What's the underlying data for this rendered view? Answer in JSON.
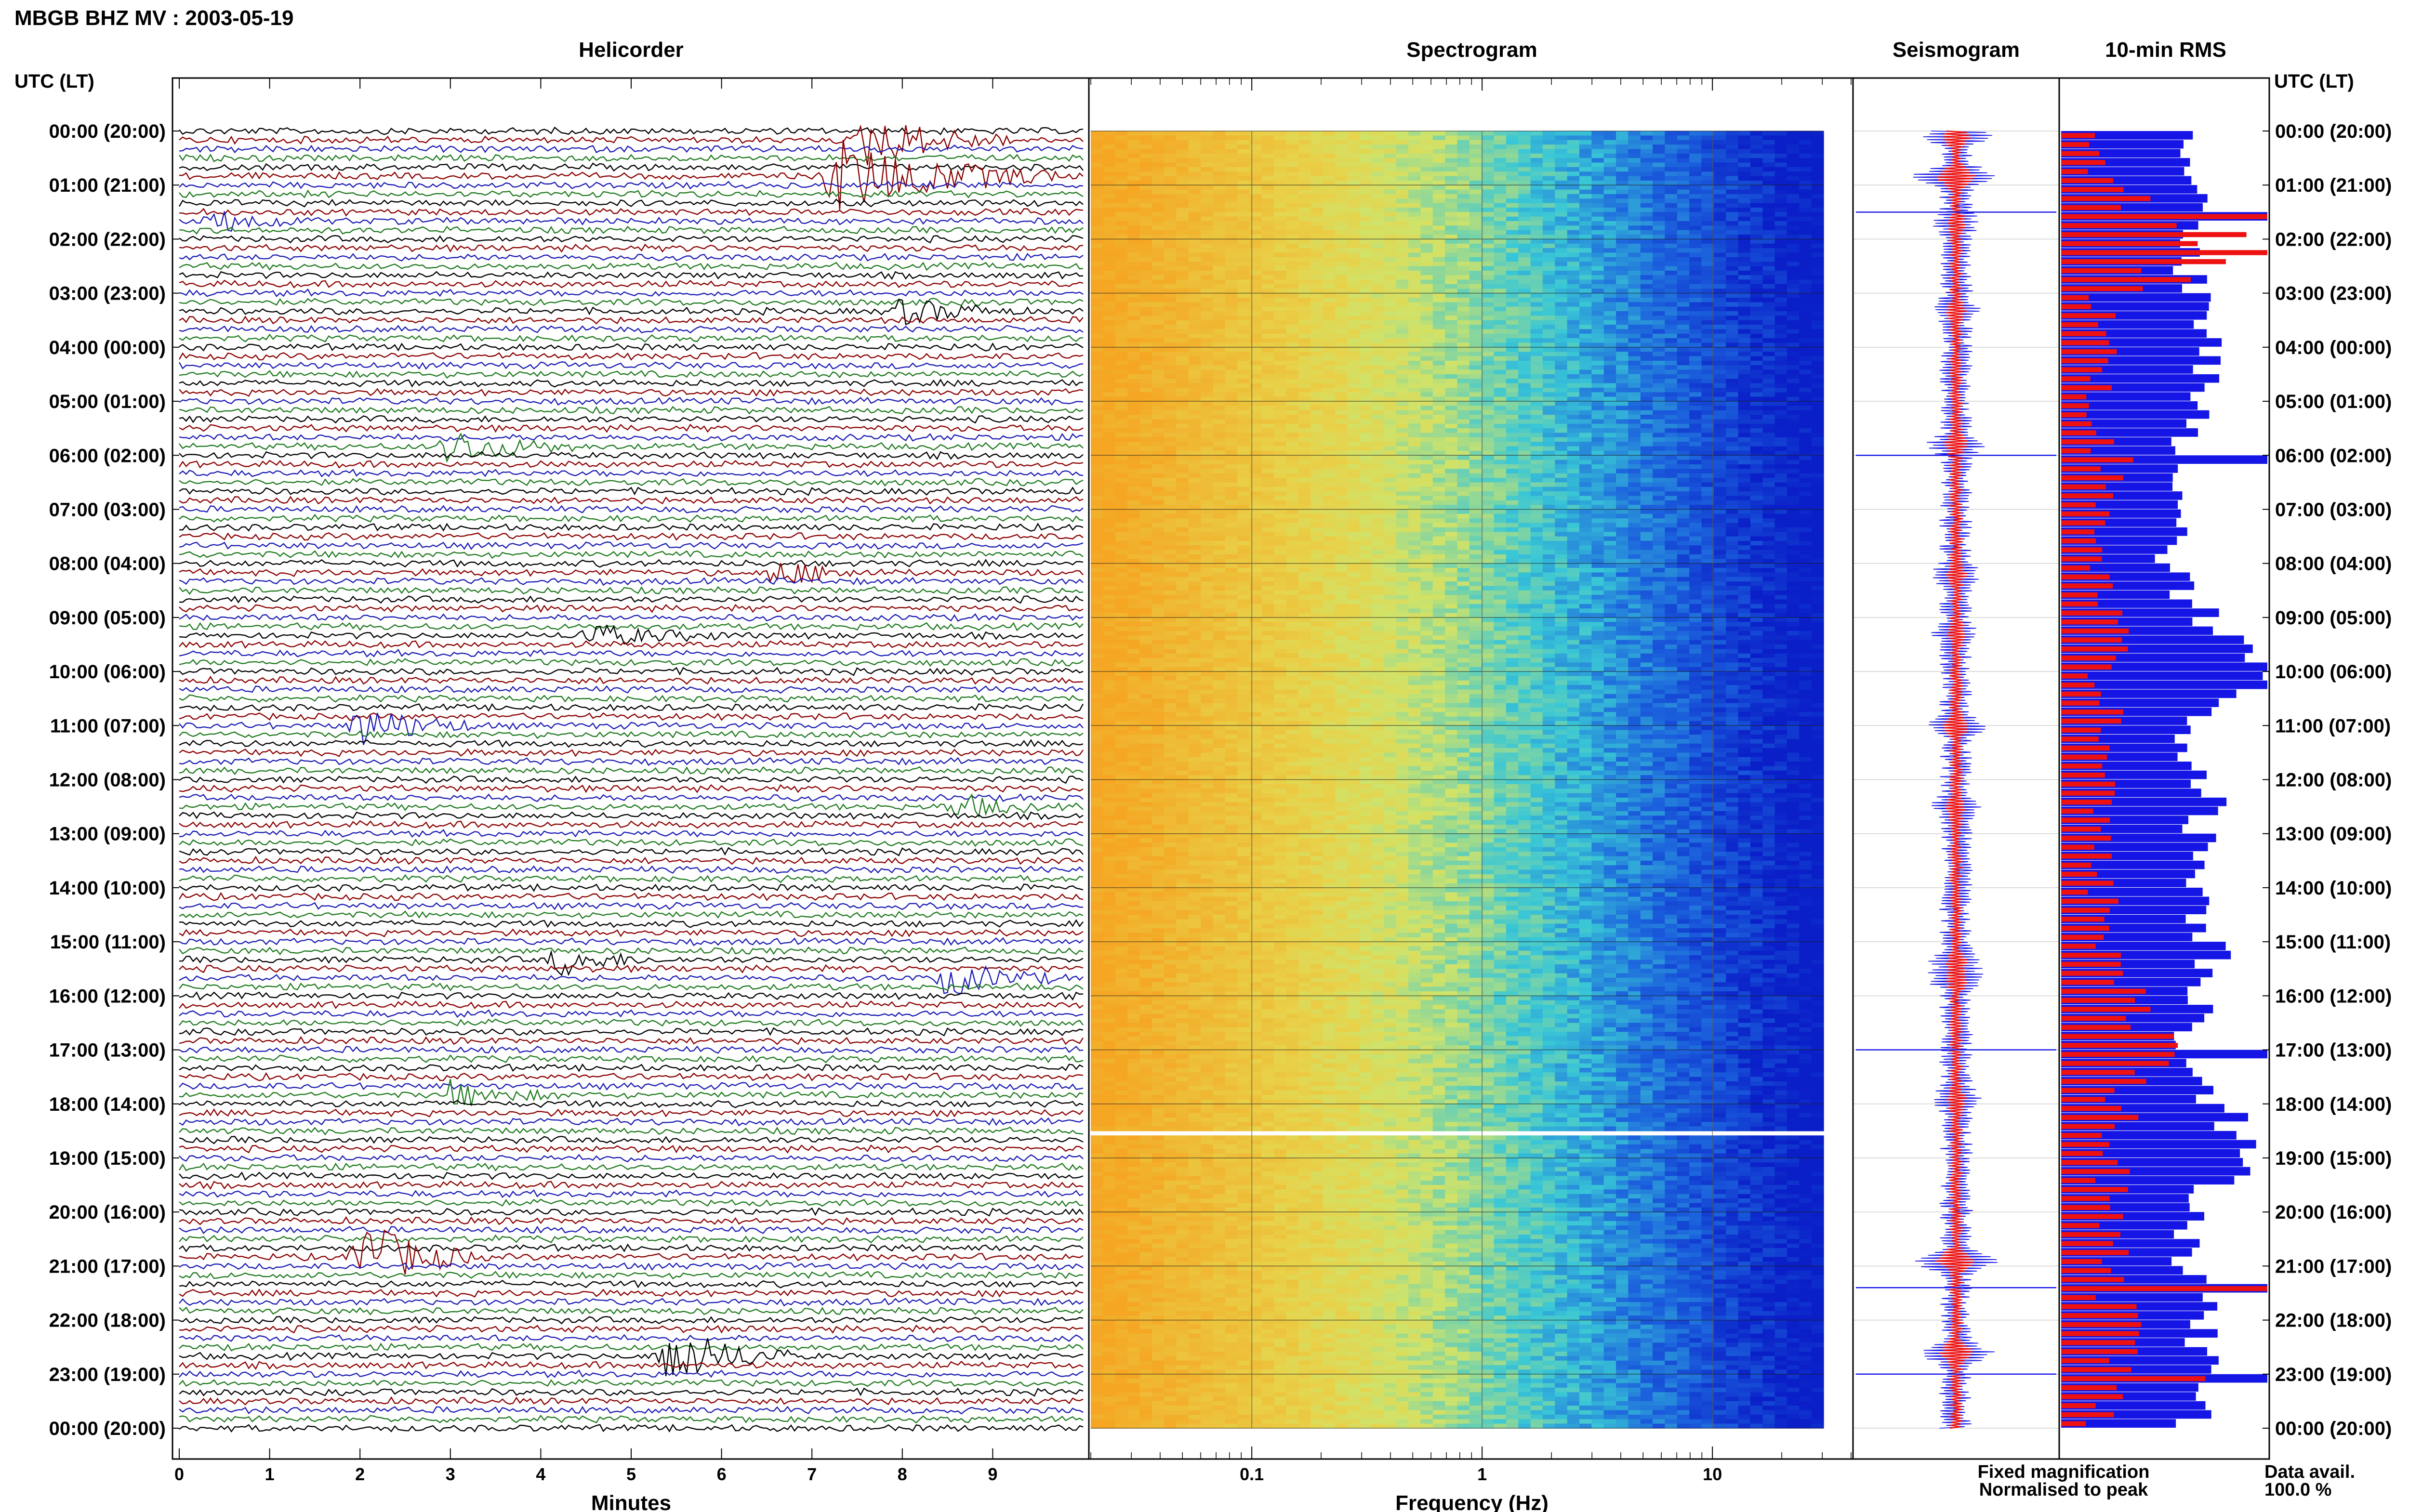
{
  "page": {
    "title": "MBGB BHZ MV : 2003-05-19",
    "time_axis_label": "UTC (LT)",
    "time_axis_label_right": "UTC (LT)"
  },
  "colors": {
    "trace_cycle": [
      "#000000",
      "#8b0000",
      "#1c1cb5",
      "#1f7a1f"
    ],
    "fixed_magnification": "#1515e6",
    "normalised_to_peak": "#ee1111",
    "spectro_low": "#f5a623",
    "spectro_mid": "#cfe36a",
    "spectro_cyan": "#39c7d6",
    "spectro_high": "#0a1fc8"
  },
  "chart_data": [
    {
      "type": "line",
      "title": "Helicorder",
      "xlabel": "Minutes",
      "xlim": [
        0,
        10
      ],
      "x_ticks": [
        "0",
        "1",
        "2",
        "3",
        "4",
        "5",
        "6",
        "7",
        "8",
        "9"
      ],
      "rows": [
        "00:00 (20:00)",
        "01:00 (21:00)",
        "02:00 (22:00)",
        "03:00 (23:00)",
        "04:00 (00:00)",
        "05:00 (01:00)",
        "06:00 (02:00)",
        "07:00 (03:00)",
        "08:00 (04:00)",
        "09:00 (05:00)",
        "10:00 (06:00)",
        "11:00 (07:00)",
        "12:00 (08:00)",
        "13:00 (09:00)",
        "14:00 (10:00)",
        "15:00 (11:00)",
        "16:00 (12:00)",
        "17:00 (13:00)",
        "18:00 (14:00)",
        "19:00 (15:00)",
        "20:00 (16:00)",
        "21:00 (17:00)",
        "22:00 (18:00)",
        "23:00 (19:00)",
        "00:00 (20:00)"
      ],
      "traces_per_hour": 6,
      "events": [
        {
          "hour": 0.1,
          "minute": 7.6,
          "amp": 6,
          "dur": 1.7
        },
        {
          "hour": 0.85,
          "minute": 7.2,
          "amp": 9,
          "dur": 2.5
        },
        {
          "hour": 1.7,
          "minute": 0.4,
          "amp": 2.5,
          "dur": 1.2
        },
        {
          "hour": 3.3,
          "minute": 8.0,
          "amp": 3,
          "dur": 1.3
        },
        {
          "hour": 5.8,
          "minute": 3.0,
          "amp": 4,
          "dur": 1.5
        },
        {
          "hour": 8.2,
          "minute": 6.6,
          "amp": 3,
          "dur": 1.2
        },
        {
          "hour": 9.3,
          "minute": 4.5,
          "amp": 2.5,
          "dur": 1.6
        },
        {
          "hour": 11.0,
          "minute": 2.0,
          "amp": 5,
          "dur": 1.3
        },
        {
          "hour": 12.5,
          "minute": 8.6,
          "amp": 3,
          "dur": 1.0
        },
        {
          "hour": 15.4,
          "minute": 4.2,
          "amp": 3.5,
          "dur": 1.0
        },
        {
          "hour": 15.7,
          "minute": 8.5,
          "amp": 4,
          "dur": 1.3
        },
        {
          "hour": 17.9,
          "minute": 3.0,
          "amp": 3,
          "dur": 1.2
        },
        {
          "hour": 20.9,
          "minute": 2.0,
          "amp": 9,
          "dur": 1.3
        },
        {
          "hour": 22.6,
          "minute": 5.4,
          "amp": 7,
          "dur": 1.4
        }
      ]
    },
    {
      "type": "heatmap",
      "title": "Spectrogram",
      "xlabel": "Frequency (Hz)",
      "x_scale": "log",
      "xlim": [
        0.02,
        40
      ],
      "x_ticks": [
        0.1,
        1,
        10
      ],
      "x_tick_labels": [
        "0.1",
        "1",
        "10"
      ],
      "rows_per_hour": 12,
      "data_gap_hours": [
        18.5,
        18.55
      ]
    },
    {
      "type": "line",
      "title": "Seismogram",
      "legend": [
        "Fixed magnification",
        "Normalised to peak"
      ]
    },
    {
      "type": "bar",
      "title": "10-min RMS",
      "bins_per_hour": 6,
      "fixed_magnification_rel": [
        0.66,
        0.65,
        0.58,
        0.64,
        0.72,
        0.65,
        0.58,
        0.55,
        0.52,
        0.7,
        1.0,
        0.6,
        0.72,
        0.68,
        0.66,
        0.75,
        0.7,
        0.6,
        0.8,
        0.85,
        0.65,
        0.62,
        0.7,
        0.68,
        0.62
      ],
      "normalised_to_peak_rel": [
        0.15,
        0.22,
        1.0,
        0.2,
        0.22,
        0.18,
        0.2,
        0.25,
        0.18,
        0.3,
        0.2,
        0.26,
        0.22,
        0.18,
        0.2,
        0.24,
        0.34,
        0.55,
        0.28,
        0.24,
        0.28,
        0.22,
        0.32,
        0.26,
        0.18
      ],
      "spikes": [
        {
          "hour": 1.5,
          "series": "normalised_to_peak",
          "value": 1.0
        },
        {
          "hour": 6.0,
          "series": "normalised_to_peak",
          "value": 0.35
        },
        {
          "hour": 17.0,
          "series": "normalised_to_peak",
          "value": 0.55
        },
        {
          "hour": 21.4,
          "series": "normalised_to_peak",
          "value": 1.0
        },
        {
          "hour": 23.0,
          "series": "normalised_to_peak",
          "value": 0.7
        }
      ]
    }
  ],
  "footer": {
    "data_avail_label": "Data avail.",
    "data_avail_value": "100.0 %"
  }
}
